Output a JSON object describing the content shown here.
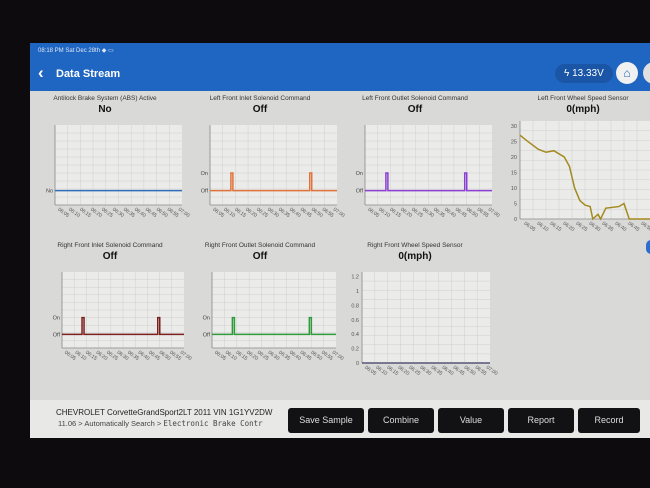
{
  "status_bar": {
    "time": "08:18 PM",
    "date": "Sat Dec 28th"
  },
  "header": {
    "title": "Data Stream",
    "voltage": "13.33V",
    "back_icon": "chevron-left-icon",
    "voltage_icon": "lightning-icon",
    "home_icon": "home-icon"
  },
  "x_ticks": [
    "06:05",
    "06:10",
    "06:15",
    "06:20",
    "06:25",
    "06:30",
    "06:35",
    "06:40",
    "06:45",
    "06:50",
    "06:55",
    "07:00"
  ],
  "chart_data": [
    {
      "type": "line",
      "title": "Antilock Brake System (ABS) Active",
      "value": "No",
      "y_labels": [
        "No"
      ],
      "color": "#2f6fb8",
      "xlim": [
        "06:02",
        "07:00"
      ],
      "points": [
        [
          "06:02",
          0
        ],
        [
          "07:00",
          0
        ]
      ]
    },
    {
      "type": "line",
      "title": "Left Front Inlet Solenoid Command",
      "value": "Off",
      "y_labels": [
        "Off",
        "On"
      ],
      "color": "#e0733a",
      "xlim": [
        "06:02",
        "07:00"
      ],
      "pulses": [
        "06:12",
        "06:48"
      ]
    },
    {
      "type": "line",
      "title": "Left Front Outlet Solenoid Command",
      "value": "Off",
      "y_labels": [
        "Off",
        "On"
      ],
      "color": "#8a3fd0",
      "xlim": [
        "06:02",
        "07:00"
      ],
      "pulses": [
        "06:12",
        "06:48"
      ]
    },
    {
      "type": "line",
      "title": "Left Front Wheel Speed Sensor",
      "value": "0(mph)",
      "y_labels": [
        "0",
        "5",
        "10",
        "15",
        "20",
        "25",
        "30"
      ],
      "ylim": [
        0,
        30
      ],
      "color": "#a48a1e",
      "xlim": [
        "06:02",
        "06:52"
      ],
      "x_ticks": [
        "06:05",
        "06:10",
        "06:15",
        "06:20",
        "06:25",
        "06:30",
        "06:35",
        "06:40",
        "06:45",
        "06:50"
      ],
      "points": [
        [
          "06:02",
          27
        ],
        [
          "06:05",
          25
        ],
        [
          "06:09",
          22.5
        ],
        [
          "06:12",
          21.5
        ],
        [
          "06:15",
          22
        ],
        [
          "06:19",
          20
        ],
        [
          "06:21",
          17
        ],
        [
          "06:23",
          10
        ],
        [
          "06:25",
          6
        ],
        [
          "06:27",
          4.5
        ],
        [
          "06:29",
          4
        ],
        [
          "06:30",
          0
        ],
        [
          "06:32",
          1.5
        ],
        [
          "06:33",
          0
        ],
        [
          "06:35",
          3.5
        ],
        [
          "06:40",
          4
        ],
        [
          "06:42",
          5
        ],
        [
          "06:44",
          0
        ],
        [
          "06:52",
          0
        ]
      ]
    },
    {
      "type": "line",
      "title": "Right Front Inlet Solenoid Command",
      "value": "Off",
      "y_labels": [
        "Off",
        "On"
      ],
      "color": "#7a1f1c",
      "xlim": [
        "06:02",
        "07:00"
      ],
      "pulses": [
        "06:12",
        "06:48"
      ]
    },
    {
      "type": "line",
      "title": "Right Front Outlet Solenoid Command",
      "value": "Off",
      "y_labels": [
        "Off",
        "On"
      ],
      "color": "#2e9a3a",
      "xlim": [
        "06:02",
        "07:00"
      ],
      "pulses": [
        "06:12",
        "06:48"
      ]
    },
    {
      "type": "line",
      "title": "Right Front Wheel Speed Sensor",
      "value": "0(mph)",
      "y_labels": [
        "0",
        "0.2",
        "0.4",
        "0.6",
        "0.8",
        "1",
        "1.2"
      ],
      "ylim": [
        0,
        1.2
      ],
      "color": "#555577",
      "xlim": [
        "06:02",
        "07:00"
      ],
      "points": [
        [
          "06:02",
          0
        ],
        [
          "07:00",
          0
        ]
      ]
    }
  ],
  "footer": {
    "vehicle": "CHEVROLET  CorvetteGrandSport2LT  2011  VIN  1G1YV2DW",
    "path_prefix": "11.06 > Automatically Search > ",
    "path_mono": "Electronic Brake Contr"
  },
  "buttons": [
    "Save Sample",
    "Combine",
    "Value",
    "Report",
    "Record"
  ]
}
